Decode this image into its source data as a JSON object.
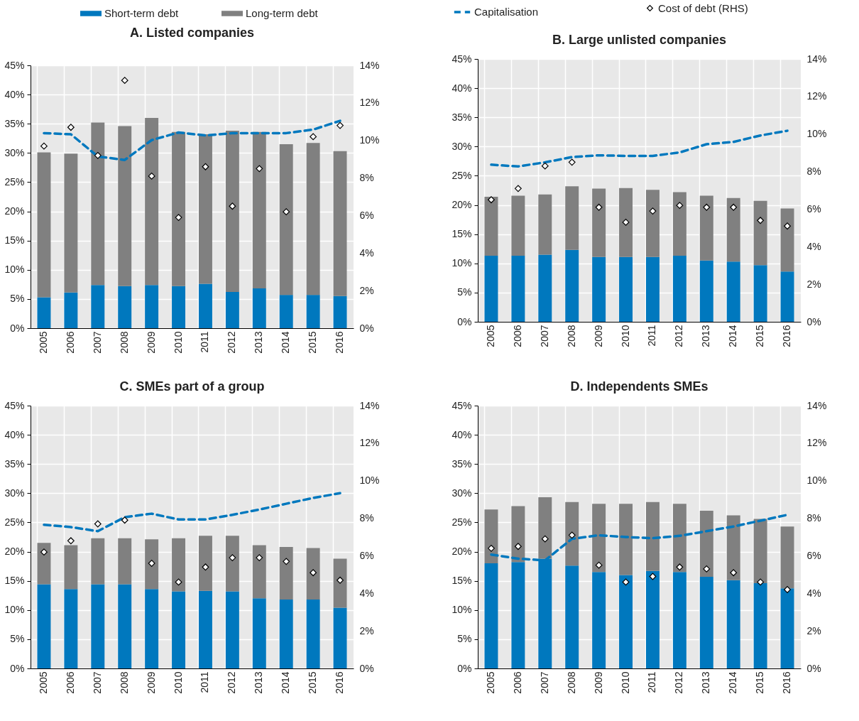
{
  "chart_data": [
    {
      "type": "bar",
      "title": "A. Listed companies",
      "stacked": true,
      "grid": true,
      "legend": "top",
      "categories": [
        "2005",
        "2006",
        "2007",
        "2008",
        "2009",
        "2010",
        "2011",
        "2012",
        "2013",
        "2014",
        "2015",
        "2016"
      ],
      "series": [
        {
          "name": "Short-term debt",
          "color": "#0078be",
          "values": [
            5.3,
            6.1,
            7.4,
            7.2,
            7.4,
            7.2,
            7.6,
            6.2,
            6.8,
            5.7,
            5.7,
            5.5
          ]
        },
        {
          "name": "Long-term debt",
          "color": "#808080",
          "values": [
            24.8,
            23.8,
            27.8,
            27.4,
            28.6,
            26.4,
            25.6,
            27.6,
            26.8,
            25.8,
            26.0,
            24.8
          ]
        },
        {
          "name": "Capitalisation",
          "type": "line",
          "line_style": "dashed",
          "color": "#0078be",
          "values": [
            33.4,
            33.2,
            29.4,
            28.8,
            32.2,
            33.5,
            33.0,
            33.4,
            33.4,
            33.4,
            34.0,
            35.5
          ]
        },
        {
          "name": "Cost of debt (RHS)",
          "type": "scatter",
          "marker": "diamond",
          "axis": "y2",
          "color": "#ffffff",
          "values": [
            9.7,
            10.7,
            9.2,
            13.2,
            8.1,
            5.9,
            8.6,
            6.5,
            8.5,
            6.2,
            10.2,
            10.8
          ]
        }
      ],
      "ylim": [
        0,
        45
      ],
      "yticks": [
        {
          "value": 0,
          "label": "0%"
        },
        {
          "value": 5,
          "label": "5%"
        },
        {
          "value": 10,
          "label": "10%"
        },
        {
          "value": 15,
          "label": "15%"
        },
        {
          "value": 20,
          "label": "20%"
        },
        {
          "value": 25,
          "label": "25%"
        },
        {
          "value": 30,
          "label": "30%"
        },
        {
          "value": 35,
          "label": "35%"
        },
        {
          "value": 40,
          "label": "40%"
        },
        {
          "value": 45,
          "label": "45%"
        }
      ],
      "y2lim": [
        0,
        14
      ],
      "y2ticks": [
        {
          "value": 0,
          "label": "0%"
        },
        {
          "value": 2,
          "label": "2%"
        },
        {
          "value": 4,
          "label": "4%"
        },
        {
          "value": 6,
          "label": "6%"
        },
        {
          "value": 8,
          "label": "8%"
        },
        {
          "value": 10,
          "label": "10%"
        },
        {
          "value": 12,
          "label": "12%"
        },
        {
          "value": 14,
          "label": "14%"
        }
      ]
    },
    {
      "type": "bar",
      "title": "B. Large unlisted companies",
      "stacked": true,
      "grid": true,
      "categories": [
        "2005",
        "2006",
        "2007",
        "2008",
        "2009",
        "2010",
        "2011",
        "2012",
        "2013",
        "2014",
        "2015",
        "2016"
      ],
      "series": [
        {
          "color": "#0078be",
          "values": [
            11.3,
            11.3,
            11.5,
            12.3,
            11.1,
            11.1,
            11.1,
            11.3,
            10.5,
            10.3,
            9.7,
            8.6
          ]
        },
        {
          "color": "#808080",
          "values": [
            10.1,
            10.3,
            10.3,
            10.9,
            11.7,
            11.8,
            11.5,
            10.9,
            11.1,
            10.9,
            11.0,
            10.8
          ]
        },
        {
          "type": "line",
          "line_style": "dashed",
          "color": "#0078be",
          "values": [
            26.9,
            26.6,
            27.3,
            28.2,
            28.5,
            28.4,
            28.4,
            29.0,
            30.4,
            30.8,
            31.9,
            32.7
          ]
        },
        {
          "type": "scatter",
          "marker": "diamond",
          "axis": "y2",
          "color": "#ffffff",
          "values": [
            6.5,
            7.1,
            8.3,
            8.5,
            6.1,
            5.3,
            5.9,
            6.2,
            6.1,
            6.1,
            5.4,
            5.1
          ]
        }
      ],
      "ylim": [
        0,
        45
      ],
      "yticks": [
        {
          "value": 0,
          "label": "0%"
        },
        {
          "value": 5,
          "label": "5%"
        },
        {
          "value": 10,
          "label": "10%"
        },
        {
          "value": 15,
          "label": "15%"
        },
        {
          "value": 20,
          "label": "20%"
        },
        {
          "value": 25,
          "label": "25%"
        },
        {
          "value": 30,
          "label": "30%"
        },
        {
          "value": 35,
          "label": "35%"
        },
        {
          "value": 40,
          "label": "40%"
        },
        {
          "value": 45,
          "label": "45%"
        }
      ],
      "y2lim": [
        0,
        14
      ],
      "y2ticks": [
        {
          "value": 0,
          "label": "0%"
        },
        {
          "value": 2,
          "label": "2%"
        },
        {
          "value": 4,
          "label": "4%"
        },
        {
          "value": 6,
          "label": "6%"
        },
        {
          "value": 8,
          "label": "8%"
        },
        {
          "value": 10,
          "label": "10%"
        },
        {
          "value": 12,
          "label": "12%"
        },
        {
          "value": 14,
          "label": "14%"
        }
      ]
    },
    {
      "type": "bar",
      "title": "C. SMEs part of a group",
      "stacked": true,
      "grid": true,
      "categories": [
        "2005",
        "2006",
        "2007",
        "2008",
        "2009",
        "2010",
        "2011",
        "2012",
        "2013",
        "2014",
        "2015",
        "2016"
      ],
      "series": [
        {
          "color": "#0078be",
          "values": [
            14.4,
            13.6,
            14.4,
            14.4,
            13.6,
            13.2,
            13.3,
            13.2,
            12.0,
            11.8,
            11.8,
            10.4
          ]
        },
        {
          "color": "#808080",
          "values": [
            7.1,
            7.5,
            7.9,
            7.9,
            8.5,
            9.1,
            9.4,
            9.5,
            9.1,
            9.0,
            8.8,
            8.4
          ]
        },
        {
          "type": "line",
          "line_style": "dashed",
          "color": "#0078be",
          "values": [
            24.6,
            24.2,
            23.5,
            25.9,
            26.5,
            25.5,
            25.5,
            26.3,
            27.2,
            28.2,
            29.2,
            30.0
          ]
        },
        {
          "type": "scatter",
          "marker": "diamond",
          "axis": "y2",
          "color": "#ffffff",
          "values": [
            6.2,
            6.8,
            7.7,
            7.9,
            5.6,
            4.6,
            5.4,
            5.9,
            5.9,
            5.7,
            5.1,
            4.7
          ]
        }
      ],
      "ylim": [
        0,
        45
      ],
      "yticks": [
        {
          "value": 0,
          "label": "0%"
        },
        {
          "value": 5,
          "label": "5%"
        },
        {
          "value": 10,
          "label": "10%"
        },
        {
          "value": 15,
          "label": "15%"
        },
        {
          "value": 20,
          "label": "20%"
        },
        {
          "value": 25,
          "label": "25%"
        },
        {
          "value": 30,
          "label": "30%"
        },
        {
          "value": 35,
          "label": "35%"
        },
        {
          "value": 40,
          "label": "40%"
        },
        {
          "value": 45,
          "label": "45%"
        }
      ],
      "y2lim": [
        0,
        14
      ],
      "y2ticks": [
        {
          "value": 0,
          "label": "0%"
        },
        {
          "value": 2,
          "label": "2%"
        },
        {
          "value": 4,
          "label": "4%"
        },
        {
          "value": 6,
          "label": "6%"
        },
        {
          "value": 8,
          "label": "8%"
        },
        {
          "value": 10,
          "label": "10%"
        },
        {
          "value": 12,
          "label": "12%"
        },
        {
          "value": 14,
          "label": "14%"
        }
      ]
    },
    {
      "type": "bar",
      "title": "D. Independents SMEs",
      "stacked": true,
      "grid": true,
      "categories": [
        "2005",
        "2006",
        "2007",
        "2008",
        "2009",
        "2010",
        "2011",
        "2012",
        "2013",
        "2014",
        "2015",
        "2016"
      ],
      "series": [
        {
          "color": "#0078be",
          "values": [
            18.0,
            18.2,
            18.8,
            17.6,
            16.5,
            16.0,
            16.7,
            16.5,
            15.7,
            15.1,
            14.6,
            13.7
          ]
        },
        {
          "color": "#808080",
          "values": [
            9.2,
            9.6,
            10.5,
            10.9,
            11.7,
            12.2,
            11.8,
            11.7,
            11.3,
            11.1,
            11.0,
            10.6
          ]
        },
        {
          "type": "line",
          "line_style": "dashed",
          "color": "#0078be",
          "values": [
            19.5,
            18.8,
            18.5,
            22.2,
            22.8,
            22.5,
            22.3,
            22.7,
            23.5,
            24.3,
            25.3,
            26.3
          ]
        },
        {
          "type": "scatter",
          "marker": "diamond",
          "axis": "y2",
          "color": "#ffffff",
          "values": [
            6.4,
            6.5,
            6.9,
            7.1,
            5.5,
            4.6,
            4.9,
            5.4,
            5.3,
            5.1,
            4.6,
            4.2
          ]
        }
      ],
      "ylim": [
        0,
        45
      ],
      "yticks": [
        {
          "value": 0,
          "label": "0%"
        },
        {
          "value": 5,
          "label": "5%"
        },
        {
          "value": 10,
          "label": "10%"
        },
        {
          "value": 15,
          "label": "15%"
        },
        {
          "value": 20,
          "label": "20%"
        },
        {
          "value": 25,
          "label": "25%"
        },
        {
          "value": 30,
          "label": "30%"
        },
        {
          "value": 35,
          "label": "35%"
        },
        {
          "value": 40,
          "label": "40%"
        },
        {
          "value": 45,
          "label": "45%"
        }
      ],
      "y2lim": [
        0,
        14
      ],
      "y2ticks": [
        {
          "value": 0,
          "label": "0%"
        },
        {
          "value": 2,
          "label": "2%"
        },
        {
          "value": 4,
          "label": "4%"
        },
        {
          "value": 6,
          "label": "6%"
        },
        {
          "value": 8,
          "label": "8%"
        },
        {
          "value": 10,
          "label": "10%"
        },
        {
          "value": 12,
          "label": "12%"
        },
        {
          "value": 14,
          "label": "14%"
        }
      ]
    }
  ]
}
